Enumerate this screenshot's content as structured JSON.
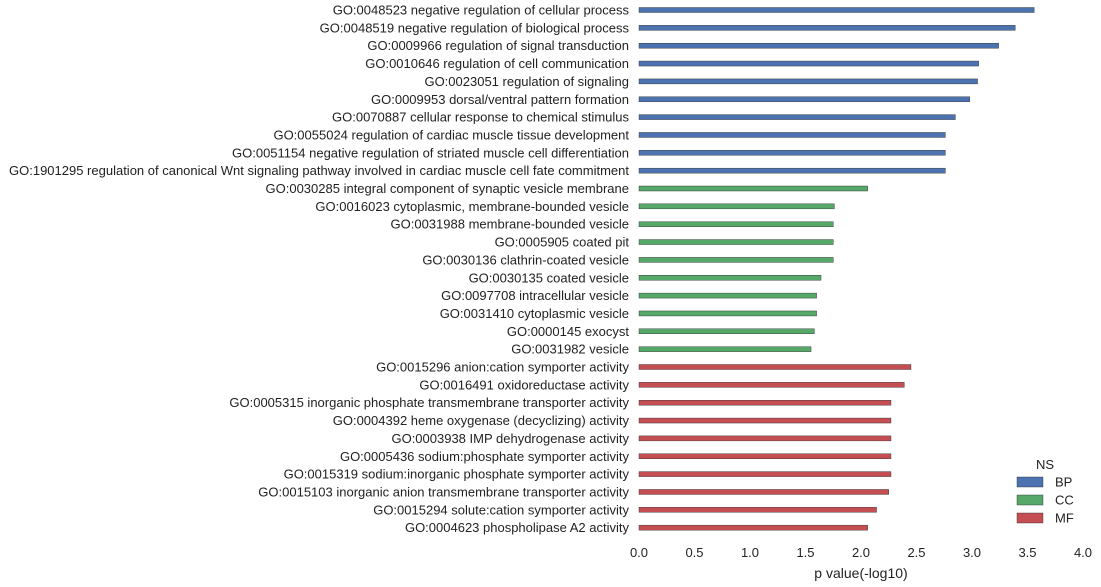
{
  "chart_data": {
    "type": "bar",
    "orientation": "horizontal",
    "xlabel": "p value(-log10)",
    "ylabel": "",
    "xlim": [
      0,
      4.0
    ],
    "xticks": [
      "0.0",
      "0.5",
      "1.0",
      "1.5",
      "2.0",
      "2.5",
      "3.0",
      "3.5",
      "4.0"
    ],
    "grid": false,
    "legend": {
      "title": "NS",
      "placement": "bottom-right",
      "entries": [
        {
          "name": "BP",
          "color": "#4c72b0"
        },
        {
          "name": "CC",
          "color": "#55a868"
        },
        {
          "name": "MF",
          "color": "#c44e52"
        }
      ]
    },
    "categories": [
      {
        "label": "GO:0048523 negative regulation of cellular process",
        "value": 3.56,
        "ns": "BP"
      },
      {
        "label": "GO:0048519 negative regulation of biological process",
        "value": 3.39,
        "ns": "BP"
      },
      {
        "label": "GO:0009966 regulation of signal transduction",
        "value": 3.24,
        "ns": "BP"
      },
      {
        "label": "GO:0010646 regulation of cell communication",
        "value": 3.06,
        "ns": "BP"
      },
      {
        "label": "GO:0023051 regulation of signaling",
        "value": 3.05,
        "ns": "BP"
      },
      {
        "label": "GO:0009953 dorsal/ventral pattern formation",
        "value": 2.98,
        "ns": "BP"
      },
      {
        "label": "GO:0070887 cellular response to chemical stimulus",
        "value": 2.85,
        "ns": "BP"
      },
      {
        "label": "GO:0055024 regulation of cardiac muscle tissue development",
        "value": 2.76,
        "ns": "BP"
      },
      {
        "label": "GO:0051154 negative regulation of striated muscle cell differentiation",
        "value": 2.76,
        "ns": "BP"
      },
      {
        "label": "GO:1901295 regulation of canonical Wnt signaling pathway involved in cardiac muscle cell fate commitment",
        "value": 2.76,
        "ns": "BP"
      },
      {
        "label": "GO:0030285 integral component of synaptic vesicle membrane",
        "value": 2.06,
        "ns": "CC"
      },
      {
        "label": "GO:0016023 cytoplasmic, membrane-bounded vesicle",
        "value": 1.76,
        "ns": "CC"
      },
      {
        "label": "GO:0031988 membrane-bounded vesicle",
        "value": 1.75,
        "ns": "CC"
      },
      {
        "label": "GO:0005905 coated pit",
        "value": 1.75,
        "ns": "CC"
      },
      {
        "label": "GO:0030136 clathrin-coated vesicle",
        "value": 1.75,
        "ns": "CC"
      },
      {
        "label": "GO:0030135 coated vesicle",
        "value": 1.64,
        "ns": "CC"
      },
      {
        "label": "GO:0097708 intracellular vesicle",
        "value": 1.6,
        "ns": "CC"
      },
      {
        "label": "GO:0031410 cytoplasmic vesicle",
        "value": 1.6,
        "ns": "CC"
      },
      {
        "label": "GO:0000145 exocyst",
        "value": 1.58,
        "ns": "CC"
      },
      {
        "label": "GO:0031982 vesicle",
        "value": 1.55,
        "ns": "CC"
      },
      {
        "label": "GO:0015296 anion:cation symporter activity",
        "value": 2.45,
        "ns": "MF"
      },
      {
        "label": "GO:0016491 oxidoreductase activity",
        "value": 2.39,
        "ns": "MF"
      },
      {
        "label": "GO:0005315 inorganic phosphate transmembrane transporter activity",
        "value": 2.27,
        "ns": "MF"
      },
      {
        "label": "GO:0004392 heme oxygenase (decyclizing) activity",
        "value": 2.27,
        "ns": "MF"
      },
      {
        "label": "GO:0003938 IMP dehydrogenase activity",
        "value": 2.27,
        "ns": "MF"
      },
      {
        "label": "GO:0005436 sodium:phosphate symporter activity",
        "value": 2.27,
        "ns": "MF"
      },
      {
        "label": "GO:0015319 sodium:inorganic phosphate symporter activity",
        "value": 2.27,
        "ns": "MF"
      },
      {
        "label": "GO:0015103 inorganic anion transmembrane transporter activity",
        "value": 2.25,
        "ns": "MF"
      },
      {
        "label": "GO:0015294 solute:cation symporter activity",
        "value": 2.14,
        "ns": "MF"
      },
      {
        "label": "GO:0004623 phospholipase A2 activity",
        "value": 2.06,
        "ns": "MF"
      }
    ]
  }
}
